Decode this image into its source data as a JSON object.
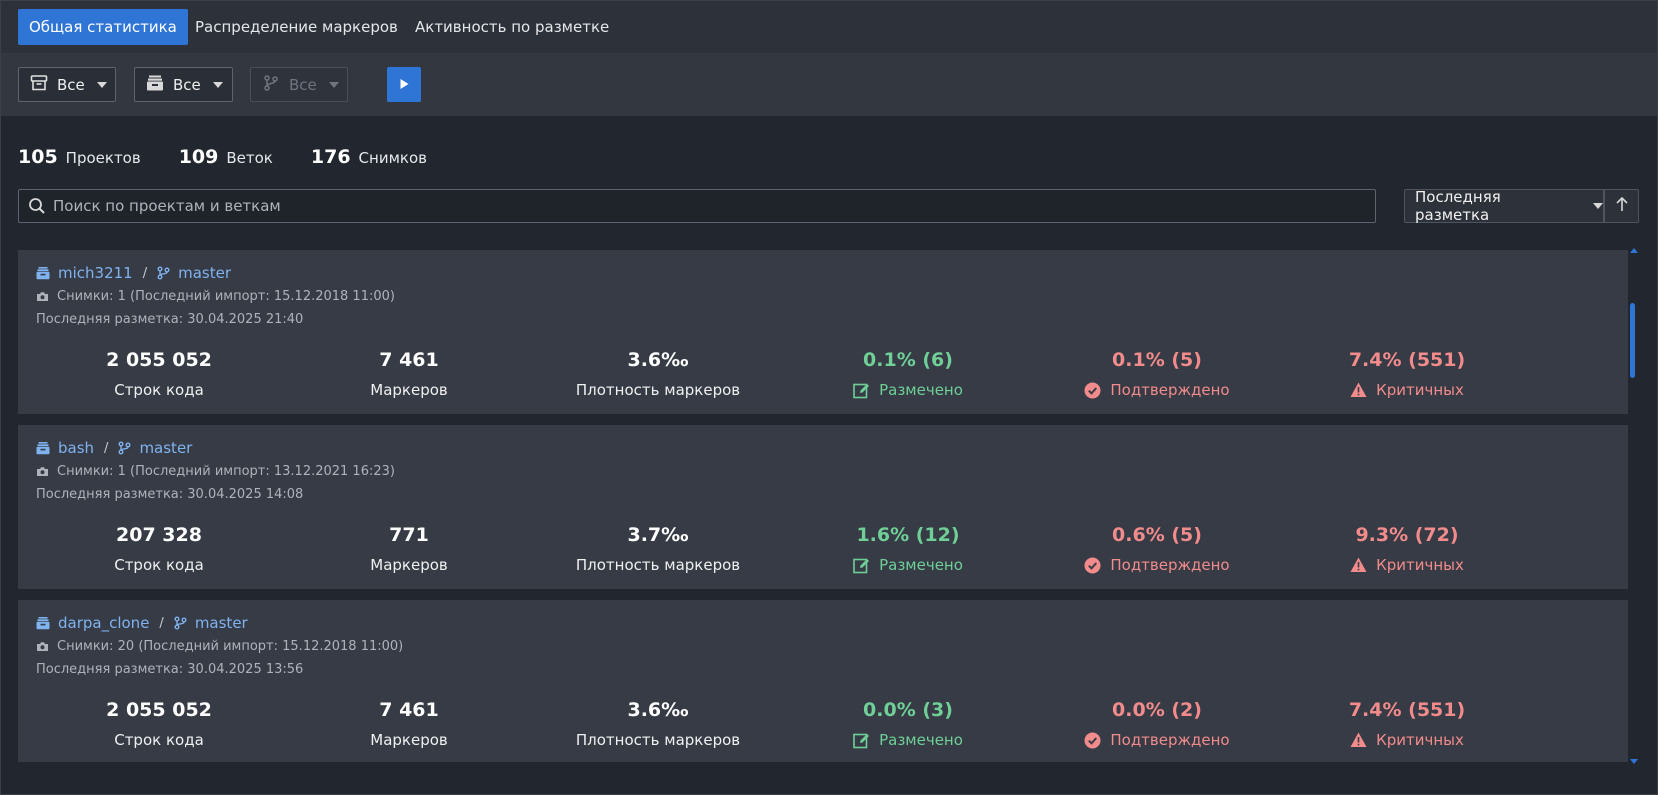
{
  "tabs": [
    {
      "label": "Общая статистика",
      "active": true
    },
    {
      "label": "Распределение маркеров",
      "active": false
    },
    {
      "label": "Активность по разметке",
      "active": false
    }
  ],
  "filters": {
    "project": {
      "label": "Все",
      "icon": "archive-icon"
    },
    "repo": {
      "label": "Все",
      "icon": "repository-icon"
    },
    "branch": {
      "label": "Все",
      "icon": "branch-icon",
      "disabled": true
    },
    "run_icon": "play-icon"
  },
  "counts": {
    "projects": {
      "value": "105",
      "label": "Проектов"
    },
    "branches": {
      "value": "109",
      "label": "Веток"
    },
    "snapshots": {
      "value": "176",
      "label": "Снимков"
    }
  },
  "search": {
    "placeholder": "Поиск по проектам и веткам",
    "value": ""
  },
  "sort": {
    "label": "Последняя разметка",
    "direction": "ascending"
  },
  "stat_labels": {
    "loc": "Строк кода",
    "markers": "Маркеров",
    "density": "Плотность маркеров",
    "marked": "Размечено",
    "confirmed": "Подтверждено",
    "critical": "Критичных"
  },
  "projects": [
    {
      "name": "mich3211",
      "branch": "master",
      "snapshots": "Снимки: 1 (Последний импорт: 15.12.2018 11:00)",
      "last_markup": "Последняя разметка: 30.04.2025 21:40",
      "loc": "2 055 052",
      "markers": "7 461",
      "density": "3.6‰",
      "marked": "0.1% (6)",
      "confirmed": "0.1% (5)",
      "critical": "7.4% (551)"
    },
    {
      "name": "bash",
      "branch": "master",
      "snapshots": "Снимки: 1 (Последний импорт: 13.12.2021 16:23)",
      "last_markup": "Последняя разметка: 30.04.2025 14:08",
      "loc": "207 328",
      "markers": "771",
      "density": "3.7‰",
      "marked": "1.6% (12)",
      "confirmed": "0.6% (5)",
      "critical": "9.3% (72)"
    },
    {
      "name": "darpa_clone",
      "branch": "master",
      "snapshots": "Снимки: 20 (Последний импорт: 15.12.2018 11:00)",
      "last_markup": "Последняя разметка: 30.04.2025 13:56",
      "loc": "2 055 052",
      "markers": "7 461",
      "density": "3.6‰",
      "marked": "0.0% (3)",
      "confirmed": "0.0% (2)",
      "critical": "7.4% (551)"
    }
  ],
  "colors": {
    "accent": "#2f75d6",
    "link": "#7fb3ef",
    "green": "#6fcf97",
    "red": "#f28b8b",
    "card_bg": "#363b45",
    "page_bg": "#22262e"
  }
}
